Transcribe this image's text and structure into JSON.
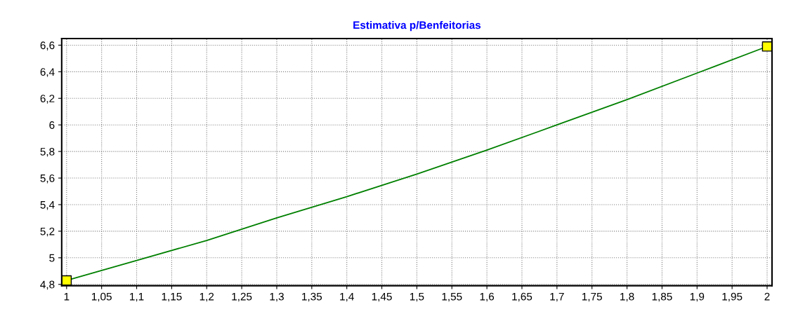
{
  "chart_data": {
    "type": "line",
    "title": "Estimativa p/Benfeitorias",
    "xlim": [
      0.993,
      2.007
    ],
    "ylim": [
      4.79,
      6.65
    ],
    "xticks": [
      1,
      {
        "value": 1.05,
        "label": "1,05"
      },
      {
        "value": 1.1,
        "label": "1,1"
      },
      {
        "value": 1.15,
        "label": "1,15"
      },
      {
        "value": 1.2,
        "label": "1,2"
      },
      {
        "value": 1.25,
        "label": "1,25"
      },
      {
        "value": 1.3,
        "label": "1,3"
      },
      {
        "value": 1.35,
        "label": "1,35"
      },
      {
        "value": 1.4,
        "label": "1,4"
      },
      {
        "value": 1.45,
        "label": "1,45"
      },
      {
        "value": 1.5,
        "label": "1,5"
      },
      {
        "value": 1.55,
        "label": "1,55"
      },
      {
        "value": 1.6,
        "label": "1,6"
      },
      {
        "value": 1.65,
        "label": "1,65"
      },
      {
        "value": 1.7,
        "label": "1,7"
      },
      {
        "value": 1.75,
        "label": "1,75"
      },
      {
        "value": 1.8,
        "label": "1,8"
      },
      {
        "value": 1.85,
        "label": "1,85"
      },
      {
        "value": 1.9,
        "label": "1,9"
      },
      {
        "value": 1.95,
        "label": "1,95"
      },
      2
    ],
    "yticks": [
      {
        "value": 4.8,
        "label": "4,8"
      },
      5,
      {
        "value": 5.2,
        "label": "5,2"
      },
      {
        "value": 5.4,
        "label": "5,4"
      },
      {
        "value": 5.6,
        "label": "5,6"
      },
      {
        "value": 5.8,
        "label": "5,8"
      },
      6,
      {
        "value": 6.2,
        "label": "6,2"
      },
      {
        "value": 6.4,
        "label": "6,4"
      },
      {
        "value": 6.6,
        "label": "6,6"
      }
    ],
    "grid": true,
    "line_style": "solid",
    "series": [
      {
        "color": "#008000",
        "marker": "none",
        "x": [
          1,
          1.1,
          1.2,
          1.3,
          1.4,
          1.5,
          1.6,
          1.7,
          1.8,
          1.9,
          2
        ],
        "values": [
          4.83,
          4.98,
          5.13,
          5.3,
          5.46,
          5.63,
          5.81,
          6.0,
          6.19,
          6.39,
          6.59
        ]
      },
      {
        "type": "scatter",
        "color": "#ffff00",
        "marker": "square",
        "x": [
          1,
          2
        ],
        "values": [
          4.83,
          6.59
        ]
      }
    ]
  }
}
